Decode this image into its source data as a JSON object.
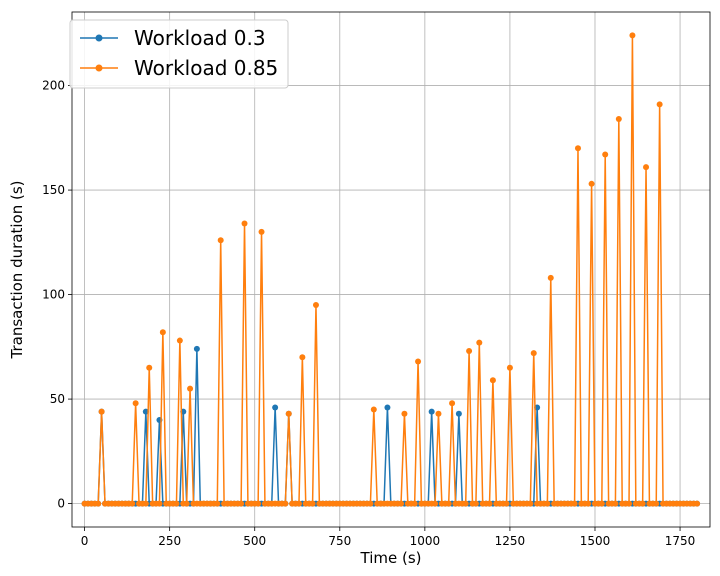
{
  "chart_data": {
    "type": "line",
    "title": "",
    "xlabel": "Time (s)",
    "ylabel": "Transaction duration (s)",
    "xlim": [
      -37,
      1838
    ],
    "ylim": [
      -11.2,
      235.2
    ],
    "xticks": [
      0,
      250,
      500,
      750,
      1000,
      1250,
      1500,
      1750
    ],
    "yticks": [
      0,
      50,
      100,
      150,
      200
    ],
    "grid": true,
    "legend_position": "top-left",
    "series": [
      {
        "name": "Workload 0.3",
        "color": "#1f77b4",
        "points": [
          [
            50,
            44
          ],
          [
            180,
            44
          ],
          [
            220,
            40
          ],
          [
            290,
            44
          ],
          [
            330,
            74
          ],
          [
            560,
            46
          ],
          [
            600,
            43
          ],
          [
            890,
            46
          ],
          [
            1020,
            44
          ],
          [
            1100,
            43
          ],
          [
            1330,
            46
          ]
        ]
      },
      {
        "name": "Workload 0.85",
        "color": "#ff7f0e",
        "points": [
          [
            50,
            44
          ],
          [
            150,
            48
          ],
          [
            190,
            65
          ],
          [
            230,
            82
          ],
          [
            280,
            78
          ],
          [
            310,
            55
          ],
          [
            400,
            126
          ],
          [
            470,
            134
          ],
          [
            520,
            130
          ],
          [
            600,
            43
          ],
          [
            640,
            70
          ],
          [
            680,
            95
          ],
          [
            850,
            45
          ],
          [
            940,
            43
          ],
          [
            980,
            68
          ],
          [
            1040,
            43
          ],
          [
            1080,
            48
          ],
          [
            1130,
            73
          ],
          [
            1160,
            77
          ],
          [
            1200,
            59
          ],
          [
            1250,
            65
          ],
          [
            1320,
            72
          ],
          [
            1370,
            108
          ],
          [
            1450,
            170
          ],
          [
            1490,
            153
          ],
          [
            1530,
            167
          ],
          [
            1570,
            184
          ],
          [
            1610,
            224
          ],
          [
            1650,
            161
          ],
          [
            1690,
            191
          ]
        ]
      }
    ]
  }
}
